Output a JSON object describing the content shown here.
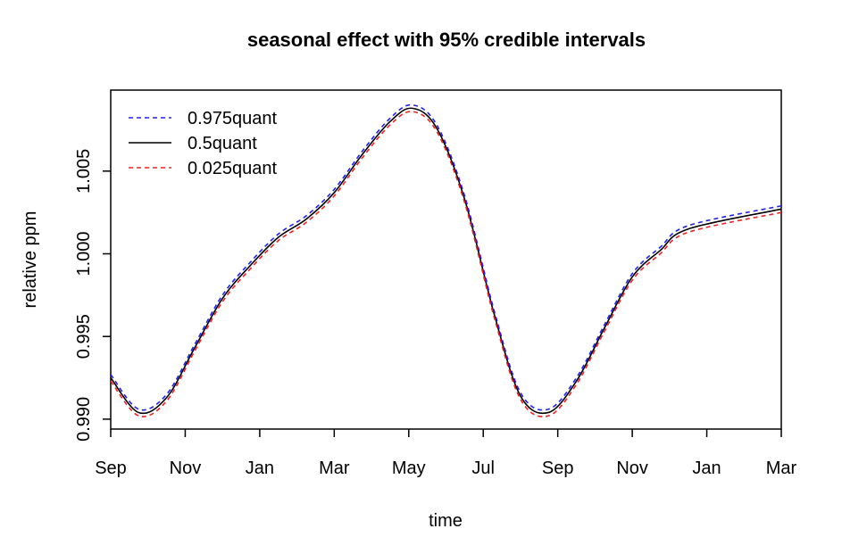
{
  "chart_data": {
    "type": "line",
    "title": "seasonal effect with 95% credible intervals",
    "xlabel": "time",
    "ylabel": "relative ppm",
    "x_ticks": [
      "Sep",
      "Nov",
      "Jan",
      "Mar",
      "May",
      "Jul",
      "Sep",
      "Nov",
      "Jan",
      "Mar"
    ],
    "xlim": [
      0,
      18
    ],
    "ylim": [
      0.9894,
      1.0099
    ],
    "y_ticks": [
      "0.990",
      "0.995",
      "1.000",
      "1.005"
    ],
    "y_tick_values": [
      0.99,
      0.995,
      1.0,
      1.005
    ],
    "grid": false,
    "legend_position": "top-left",
    "x_month_index": [
      0,
      1,
      2,
      3,
      4,
      5,
      6,
      7,
      8,
      9,
      10,
      11,
      12,
      13,
      14,
      15,
      16,
      17,
      18
    ],
    "series": [
      {
        "name": "0.975quant",
        "color": "#2222ee",
        "dash": "dashed",
        "values": [
          0.9927,
          0.9906,
          0.9915,
          0.9945,
          0.9975,
          0.9995,
          1.0012,
          1.0023,
          1.0039,
          1.0062,
          1.0082,
          1.009,
          1.0078,
          1.0035,
          0.9965,
          0.9916,
          0.9906,
          0.9925,
          0.9957,
          0.9988,
          1.0004,
          1.0017,
          1.0029
        ]
      },
      {
        "name": "0.5quant",
        "color": "#000000",
        "dash": "solid",
        "values": [
          0.9925,
          0.9904,
          0.9913,
          0.9943,
          0.9973,
          0.9993,
          1.001,
          1.0021,
          1.0037,
          1.006,
          1.008,
          1.0088,
          1.0076,
          1.0033,
          0.9963,
          0.9914,
          0.9904,
          0.9923,
          0.9955,
          0.9986,
          1.0002,
          1.0015,
          1.0027
        ]
      },
      {
        "name": "0.025quant",
        "color": "#ee2222",
        "dash": "dashed",
        "values": [
          0.9923,
          0.9902,
          0.9911,
          0.9941,
          0.9971,
          0.9991,
          1.0008,
          1.0019,
          1.0035,
          1.0058,
          1.0078,
          1.0086,
          1.0074,
          1.0031,
          0.9961,
          0.9912,
          0.9902,
          0.9921,
          0.9953,
          0.9984,
          1.0,
          1.0013,
          1.0025
        ]
      }
    ],
    "x": [
      0,
      0.75,
      1.5,
      2.25,
      3,
      3.75,
      4.5,
      5.25,
      6,
      6.75,
      7.5,
      8.1,
      8.75,
      9.5,
      10.3,
      11,
      11.75,
      12.5,
      13.25,
      14,
      14.75,
      15.5,
      18
    ]
  }
}
